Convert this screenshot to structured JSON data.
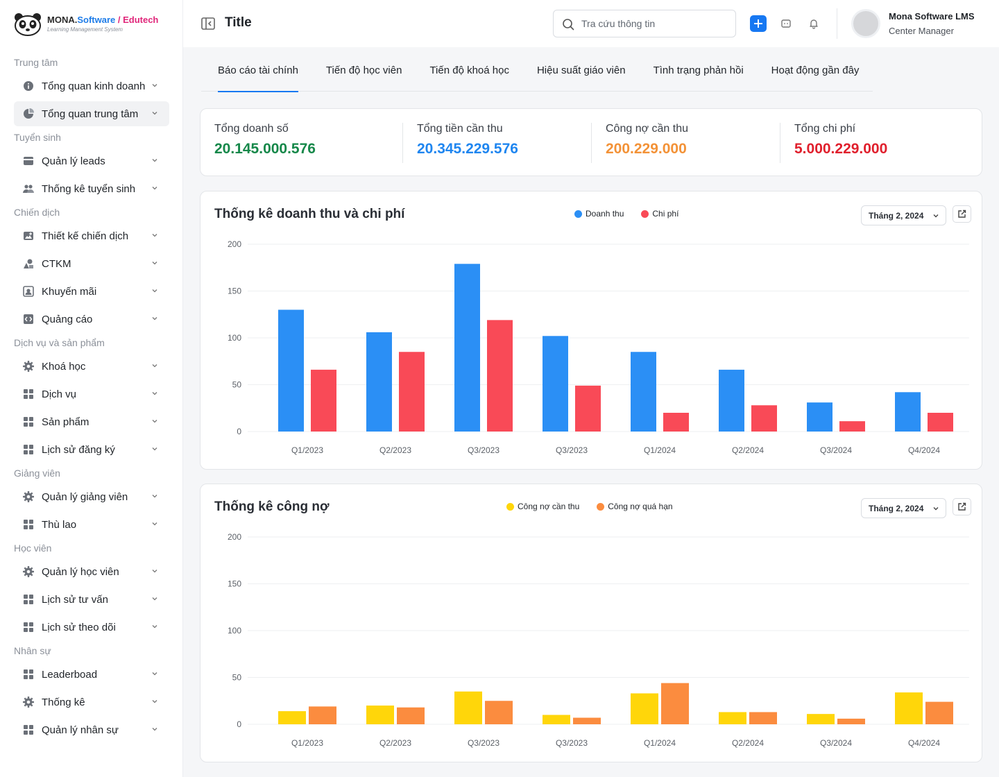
{
  "brand": {
    "part1": "MONA.",
    "part2": "Software",
    "part3": " / Edutech",
    "tagline": "Learning Management System"
  },
  "sidebar": {
    "sections": [
      {
        "title": "Trung tâm",
        "items": [
          {
            "label": "Tổng quan kinh doanh",
            "icon": "info-icon",
            "active": false
          },
          {
            "label": "Tổng quan trung tâm",
            "icon": "pie-icon",
            "active": true
          }
        ]
      },
      {
        "title": "Tuyển sinh",
        "items": [
          {
            "label": "Quản lý leads",
            "icon": "card-icon",
            "active": false
          },
          {
            "label": "Thống kê tuyển sinh",
            "icon": "users-icon",
            "active": false
          }
        ]
      },
      {
        "title": "Chiến dịch",
        "items": [
          {
            "label": "Thiết kế chiến dịch",
            "icon": "image-plus-icon",
            "active": false
          },
          {
            "label": "CTKM",
            "icon": "shapes-icon",
            "active": false
          },
          {
            "label": "Khuyến mãi",
            "icon": "frame-icon",
            "active": false
          },
          {
            "label": "Quảng cáo",
            "icon": "code-icon",
            "active": false
          }
        ]
      },
      {
        "title": "Dịch vụ và sản phẩm",
        "items": [
          {
            "label": "Khoá học",
            "icon": "gear-icon",
            "active": false
          },
          {
            "label": "Dịch vụ",
            "icon": "grid-icon",
            "active": false
          },
          {
            "label": "Sản phẩm",
            "icon": "grid-icon",
            "active": false
          },
          {
            "label": "Lịch sử đăng ký",
            "icon": "grid-icon",
            "active": false
          }
        ]
      },
      {
        "title": "Giảng viên",
        "items": [
          {
            "label": "Quản lý giảng viên",
            "icon": "gear-icon",
            "active": false
          },
          {
            "label": "Thù lao",
            "icon": "grid-icon",
            "active": false
          }
        ]
      },
      {
        "title": "Học viên",
        "items": [
          {
            "label": "Quản lý học viên",
            "icon": "gear-icon",
            "active": false
          },
          {
            "label": "Lịch sử tư vấn",
            "icon": "grid-icon",
            "active": false
          },
          {
            "label": "Lịch sử theo dõi",
            "icon": "grid-icon",
            "active": false
          }
        ]
      },
      {
        "title": "Nhân sự",
        "items": [
          {
            "label": "Leaderboad",
            "icon": "grid-icon",
            "active": false
          },
          {
            "label": "Thống kê",
            "icon": "gear-icon",
            "active": false
          },
          {
            "label": "Quản lý nhân sự",
            "icon": "grid-icon",
            "active": false
          }
        ]
      }
    ]
  },
  "header": {
    "title": "Title",
    "search_placeholder": "Tra cứu thông tin",
    "user_name": "Mona Software LMS",
    "user_role": "Center Manager"
  },
  "tabs": [
    {
      "label": "Báo cáo tài chính",
      "active": true
    },
    {
      "label": "Tiến độ học viên",
      "active": false
    },
    {
      "label": "Tiến độ khoá học",
      "active": false
    },
    {
      "label": "Hiệu suất giáo viên",
      "active": false
    },
    {
      "label": "Tình trạng phản hồi",
      "active": false
    },
    {
      "label": "Hoạt động gần đây",
      "active": false
    }
  ],
  "summary": [
    {
      "label": "Tổng doanh số",
      "value": "20.145.000.576",
      "color": "#16884a"
    },
    {
      "label": "Tổng tiền cần thu",
      "value": "20.345.229.576",
      "color": "#1f86f0"
    },
    {
      "label": "Công nợ cần thu",
      "value": "200.229.000",
      "color": "#f39237"
    },
    {
      "label": "Tổng chi phí",
      "value": "5.000.229.000",
      "color": "#e0202d"
    }
  ],
  "chart_data": [
    {
      "type": "bar",
      "title": "Thống kê doanh thu và chi phí",
      "filter": "Tháng 2, 2024",
      "categories": [
        "Q1/2023",
        "Q2/2023",
        "Q3/2023",
        "Q3/2023",
        "Q1/2024",
        "Q2/2024",
        "Q3/2024",
        "Q4/2024"
      ],
      "series": [
        {
          "name": "Doanh thu",
          "color": "#2b8ff5",
          "values": [
            130,
            106,
            179,
            102,
            85,
            66,
            31,
            42
          ]
        },
        {
          "name": "Chi phí",
          "color": "#f94a57",
          "values": [
            66,
            85,
            119,
            49,
            20,
            28,
            11,
            20
          ]
        }
      ],
      "yticks": [
        0,
        50,
        100,
        150,
        200
      ],
      "ylim": [
        0,
        200
      ],
      "legend": "top-center"
    },
    {
      "type": "bar",
      "title": "Thống kê công nợ",
      "filter": "Tháng 2, 2024",
      "categories": [
        "Q1/2023",
        "Q2/2023",
        "Q3/2023",
        "Q3/2023",
        "Q1/2024",
        "Q2/2024",
        "Q3/2024",
        "Q4/2024"
      ],
      "series": [
        {
          "name": "Công nợ cần thu",
          "color": "#ffd60a",
          "values": [
            14,
            20,
            35,
            10,
            33,
            13,
            11,
            34
          ]
        },
        {
          "name": "Công nợ quá hạn",
          "color": "#fb8c3f",
          "values": [
            19,
            18,
            25,
            7,
            44,
            13,
            6,
            24
          ]
        }
      ],
      "yticks": [
        0,
        50,
        100,
        150,
        200
      ],
      "ylim": [
        0,
        200
      ],
      "legend": "top-center"
    }
  ]
}
